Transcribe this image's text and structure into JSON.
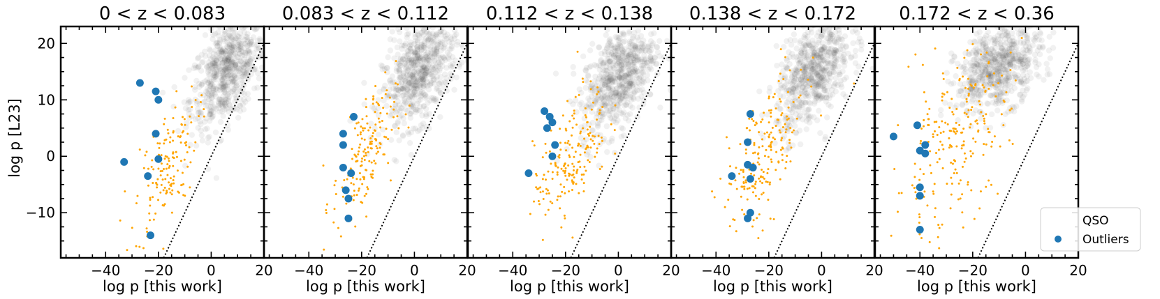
{
  "figure": {
    "ylabel": "log p [L23]",
    "xlabel": "log p [this work]"
  },
  "legend": {
    "items": [
      {
        "label": "QSO",
        "kind": "density"
      },
      {
        "label": "Outliers",
        "kind": "marker"
      }
    ]
  },
  "colors": {
    "outlier": "#1f77b4",
    "qso_points": "#ffa500",
    "density": "#333333",
    "frame": "#000000"
  },
  "chart_data": [
    {
      "type": "scatter",
      "title": "0 < z < 0.083",
      "xlabel": "log p [this work]",
      "ylabel": "log p [L23]",
      "xlim": [
        -57,
        20
      ],
      "ylim": [
        -18,
        23
      ],
      "xticks": [
        -40,
        -20,
        0,
        20
      ],
      "yticks": [
        -10,
        0,
        10,
        20
      ],
      "reference_line": "y = x",
      "density": {
        "center": [
          6,
          15
        ],
        "spread": [
          7,
          5
        ],
        "corr": 0.5,
        "count": 650
      },
      "qso_cloud": {
        "center": [
          -17,
          -2
        ],
        "spread": [
          6,
          6
        ],
        "corr": 0.6,
        "count": 150
      },
      "outliers": [
        [
          -27,
          13
        ],
        [
          -21,
          11.5
        ],
        [
          -20,
          10
        ],
        [
          -21,
          4
        ],
        [
          -20,
          -0.5
        ],
        [
          -33,
          -1
        ],
        [
          -24,
          -3.5
        ],
        [
          -23,
          -14
        ]
      ]
    },
    {
      "type": "scatter",
      "title": "0.083 < z < 0.112",
      "xlabel": "log p [this work]",
      "ylabel": "log p [L23]",
      "xlim": [
        -57,
        20
      ],
      "ylim": [
        -18,
        23
      ],
      "xticks": [
        -40,
        -20,
        0,
        20
      ],
      "yticks": [
        -10,
        0,
        10,
        20
      ],
      "reference_line": "y = x",
      "density": {
        "center": [
          2,
          15
        ],
        "spread": [
          7,
          5
        ],
        "corr": 0.5,
        "count": 650
      },
      "qso_cloud": {
        "center": [
          -19,
          0
        ],
        "spread": [
          6,
          6
        ],
        "corr": 0.6,
        "count": 170
      },
      "outliers": [
        [
          -23,
          7
        ],
        [
          -27,
          4
        ],
        [
          -27,
          2
        ],
        [
          -27,
          -2
        ],
        [
          -24,
          -3
        ],
        [
          -26,
          -6
        ],
        [
          -25,
          -7.5
        ],
        [
          -25,
          -11
        ]
      ]
    },
    {
      "type": "scatter",
      "title": "0.112 < z < 0.138",
      "xlabel": "log p [this work]",
      "ylabel": "log p [L23]",
      "xlim": [
        -57,
        20
      ],
      "ylim": [
        -18,
        23
      ],
      "xticks": [
        -40,
        -20,
        0,
        20
      ],
      "yticks": [
        -10,
        0,
        10,
        20
      ],
      "reference_line": "y = x",
      "density": {
        "center": [
          0,
          14
        ],
        "spread": [
          7,
          5
        ],
        "corr": 0.5,
        "count": 650
      },
      "qso_cloud": {
        "center": [
          -18,
          0
        ],
        "spread": [
          7,
          6
        ],
        "corr": 0.6,
        "count": 190
      },
      "outliers": [
        [
          -28,
          8
        ],
        [
          -26,
          7
        ],
        [
          -25,
          6
        ],
        [
          -27,
          5
        ],
        [
          -24,
          2
        ],
        [
          -25,
          0
        ],
        [
          -34,
          -3
        ]
      ]
    },
    {
      "type": "scatter",
      "title": "0.138 < z < 0.172",
      "xlabel": "log p [this work]",
      "ylabel": "log p [L23]",
      "xlim": [
        -57,
        20
      ],
      "ylim": [
        -18,
        23
      ],
      "xticks": [
        -40,
        -20,
        0,
        20
      ],
      "yticks": [
        -10,
        0,
        10,
        20
      ],
      "reference_line": "y = x",
      "density": {
        "center": [
          -3,
          15
        ],
        "spread": [
          7,
          5
        ],
        "corr": 0.5,
        "count": 650
      },
      "qso_cloud": {
        "center": [
          -22,
          0
        ],
        "spread": [
          8,
          7
        ],
        "corr": 0.6,
        "count": 200
      },
      "outliers": [
        [
          -27,
          7.5
        ],
        [
          -28,
          2.5
        ],
        [
          -28,
          -1.5
        ],
        [
          -26,
          -2
        ],
        [
          -34,
          -3.5
        ],
        [
          -27,
          -4
        ],
        [
          -27,
          -10
        ],
        [
          -28,
          -11
        ]
      ]
    },
    {
      "type": "scatter",
      "title": "0.172 < z < 0.36",
      "xlabel": "log p [this work]",
      "ylabel": "log p [L23]",
      "xlim": [
        -57,
        20
      ],
      "ylim": [
        -18,
        23
      ],
      "xticks": [
        -40,
        -20,
        0,
        20
      ],
      "yticks": [
        -10,
        0,
        10,
        20
      ],
      "reference_line": "y = x",
      "density": {
        "center": [
          -10,
          16
        ],
        "spread": [
          8,
          4
        ],
        "corr": 0.4,
        "count": 650
      },
      "qso_cloud": {
        "center": [
          -28,
          2
        ],
        "spread": [
          11,
          8
        ],
        "corr": 0.5,
        "count": 230
      },
      "outliers": [
        [
          -50,
          3.5
        ],
        [
          -41,
          5.5
        ],
        [
          -40,
          1
        ],
        [
          -38,
          2
        ],
        [
          -38,
          0.5
        ],
        [
          -40,
          -5.5
        ],
        [
          -40,
          -7
        ],
        [
          -40,
          -13
        ]
      ]
    }
  ]
}
